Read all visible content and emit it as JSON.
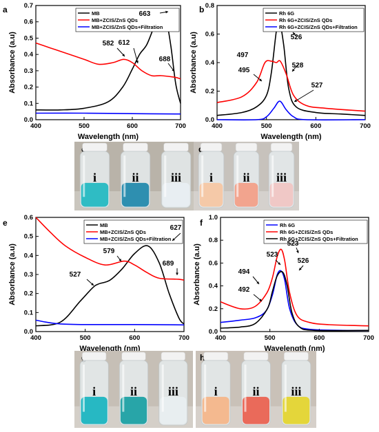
{
  "chart_data": [
    {
      "panel": "a",
      "type": "line",
      "xlabel": "Wavelength (nm)",
      "ylabel": "Absorbance (a.u)",
      "xlim": [
        400,
        700
      ],
      "ylim": [
        0,
        0.7
      ],
      "xticks": [
        400,
        500,
        600,
        700
      ],
      "yticks": [
        0.0,
        0.1,
        0.2,
        0.3,
        0.4,
        0.5,
        0.6,
        0.7
      ],
      "legend": "top-center",
      "series": [
        {
          "name": "MB",
          "color": "#000000",
          "x": [
            400,
            450,
            500,
            550,
            580,
            600,
            615,
            630,
            645,
            655,
            663,
            670,
            680,
            690,
            700
          ],
          "y": [
            0.06,
            0.06,
            0.07,
            0.11,
            0.2,
            0.31,
            0.4,
            0.46,
            0.57,
            0.64,
            0.66,
            0.62,
            0.45,
            0.22,
            0.1
          ]
        },
        {
          "name": "MB+ZCIS/ZnS QDs",
          "color": "#ff0000",
          "x": [
            400,
            430,
            460,
            500,
            530,
            560,
            582,
            600,
            620,
            640,
            660,
            688,
            700
          ],
          "y": [
            0.47,
            0.44,
            0.41,
            0.37,
            0.34,
            0.35,
            0.37,
            0.35,
            0.3,
            0.27,
            0.27,
            0.26,
            0.25
          ]
        },
        {
          "name": "MB+ZCIS/ZnS QDs+Filtration",
          "color": "#0000ff",
          "x": [
            400,
            500,
            600,
            700
          ],
          "y": [
            0.04,
            0.04,
            0.037,
            0.035
          ]
        }
      ],
      "annotations": [
        "663",
        "582",
        "612",
        "688"
      ]
    },
    {
      "panel": "b",
      "type": "line",
      "xlabel": "Wavelength (nm)",
      "ylabel": "Absorbance (a.u)",
      "xlim": [
        400,
        700
      ],
      "ylim": [
        0,
        0.8
      ],
      "xticks": [
        400,
        500,
        600,
        700
      ],
      "yticks": [
        0.0,
        0.2,
        0.4,
        0.6,
        0.8
      ],
      "legend": "top-right",
      "series": [
        {
          "name": "Rh 6G",
          "color": "#000000",
          "x": [
            400,
            450,
            480,
            500,
            510,
            520,
            526,
            535,
            545,
            560,
            600,
            650,
            700
          ],
          "y": [
            0.03,
            0.05,
            0.09,
            0.17,
            0.33,
            0.62,
            0.7,
            0.52,
            0.22,
            0.09,
            0.05,
            0.04,
            0.03
          ]
        },
        {
          "name": "Rh 6G+ZCIS/ZnS QDs",
          "color": "#ff0000",
          "x": [
            400,
            450,
            480,
            497,
            510,
            520,
            528,
            540,
            555,
            580,
            620,
            700
          ],
          "y": [
            0.12,
            0.16,
            0.26,
            0.4,
            0.41,
            0.4,
            0.41,
            0.32,
            0.17,
            0.1,
            0.08,
            0.06
          ]
        },
        {
          "name": "Rh 6G+ZCIS/ZnS QDs+Filtration",
          "color": "#0000ff",
          "x": [
            400,
            480,
            500,
            515,
            527,
            540,
            555,
            580,
            700
          ],
          "y": [
            0.0,
            0.0,
            0.02,
            0.08,
            0.13,
            0.07,
            0.02,
            0.0,
            0.0
          ]
        }
      ],
      "annotations": [
        "526",
        "497",
        "495",
        "528",
        "527"
      ]
    },
    {
      "panel": "e",
      "type": "line",
      "xlabel": "Wavelength (nm)",
      "ylabel": "Absorbance (a.u)",
      "xlim": [
        400,
        700
      ],
      "ylim": [
        0,
        0.6
      ],
      "xticks": [
        400,
        500,
        600,
        700
      ],
      "yticks": [
        0.0,
        0.1,
        0.2,
        0.3,
        0.4,
        0.5,
        0.6
      ],
      "legend": "top-right",
      "series": [
        {
          "name": "MB",
          "color": "#000000",
          "x": [
            400,
            450,
            490,
            515,
            527,
            550,
            575,
            600,
            627,
            650,
            670,
            690,
            700
          ],
          "y": [
            0.03,
            0.05,
            0.16,
            0.23,
            0.25,
            0.27,
            0.33,
            0.41,
            0.45,
            0.36,
            0.2,
            0.07,
            0.04
          ]
        },
        {
          "name": "MB+ZCIS/ZnS QDs",
          "color": "#ff0000",
          "x": [
            400,
            430,
            460,
            500,
            540,
            579,
            600,
            625,
            650,
            689,
            700
          ],
          "y": [
            0.6,
            0.52,
            0.45,
            0.39,
            0.35,
            0.37,
            0.35,
            0.31,
            0.28,
            0.275,
            0.27
          ]
        },
        {
          "name": "MB+ZCIS/ZnS QDs+Filtration",
          "color": "#0000ff",
          "x": [
            400,
            420,
            450,
            500,
            600,
            700
          ],
          "y": [
            0.06,
            0.05,
            0.04,
            0.037,
            0.037,
            0.035
          ]
        }
      ],
      "annotations": [
        "627",
        "579",
        "527",
        "689"
      ]
    },
    {
      "panel": "f",
      "type": "line",
      "xlabel": "Wavelength (nm)",
      "ylabel": "Absorbance (a.u)",
      "xlim": [
        400,
        700
      ],
      "ylim": [
        0,
        1.0
      ],
      "xticks": [
        400,
        500,
        600,
        700
      ],
      "yticks": [
        0.0,
        0.2,
        0.4,
        0.6,
        0.8,
        1.0
      ],
      "legend": "top-right",
      "series": [
        {
          "name": "Rh 6G",
          "color": "#0000ff",
          "x": [
            400,
            440,
            470,
            492,
            505,
            515,
            523,
            530,
            540,
            555,
            580,
            650,
            700
          ],
          "y": [
            0.08,
            0.1,
            0.12,
            0.18,
            0.32,
            0.5,
            0.53,
            0.45,
            0.2,
            0.06,
            0.02,
            0.01,
            0.01
          ]
        },
        {
          "name": "Rh 6G+ZCIS/ZnS QDs",
          "color": "#ff0000",
          "x": [
            400,
            440,
            470,
            494,
            505,
            515,
            523,
            530,
            540,
            555,
            580,
            620,
            700
          ],
          "y": [
            0.26,
            0.2,
            0.22,
            0.34,
            0.47,
            0.66,
            0.72,
            0.62,
            0.34,
            0.14,
            0.08,
            0.06,
            0.05
          ]
        },
        {
          "name": "Rh 6G+ZCIS/ZnS QDs+Filtration",
          "color": "#000000",
          "x": [
            400,
            440,
            470,
            495,
            505,
            515,
            526,
            535,
            545,
            560,
            590,
            700
          ],
          "y": [
            0.03,
            0.04,
            0.07,
            0.2,
            0.35,
            0.49,
            0.52,
            0.4,
            0.16,
            0.04,
            0.01,
            0.01
          ]
        }
      ],
      "annotations": [
        "523",
        "523",
        "526",
        "494",
        "492"
      ]
    }
  ],
  "photos": [
    {
      "panel": "c",
      "labels": [
        "i",
        "ii",
        "iii"
      ],
      "liquid_colors": [
        "#2fbcc4",
        "#2e8fb0",
        "#e8eef2"
      ],
      "background": "#b9b3a9"
    },
    {
      "panel": "d",
      "labels": [
        "i",
        "ii",
        "iii"
      ],
      "liquid_colors": [
        "#f5c9a8",
        "#f2a48e",
        "#f0c8c6"
      ],
      "background": "#c7c2bc"
    },
    {
      "panel": "g",
      "labels": [
        "i",
        "ii",
        "iii"
      ],
      "liquid_colors": [
        "#27b8c3",
        "#28a5a8",
        "#e8eef0"
      ],
      "background": "#c6bfb6"
    },
    {
      "panel": "h",
      "labels": [
        "i",
        "ii",
        "iii"
      ],
      "liquid_colors": [
        "#f4b98f",
        "#ea6a5a",
        "#e4d63a"
      ],
      "background": "#c9c1b8"
    }
  ]
}
